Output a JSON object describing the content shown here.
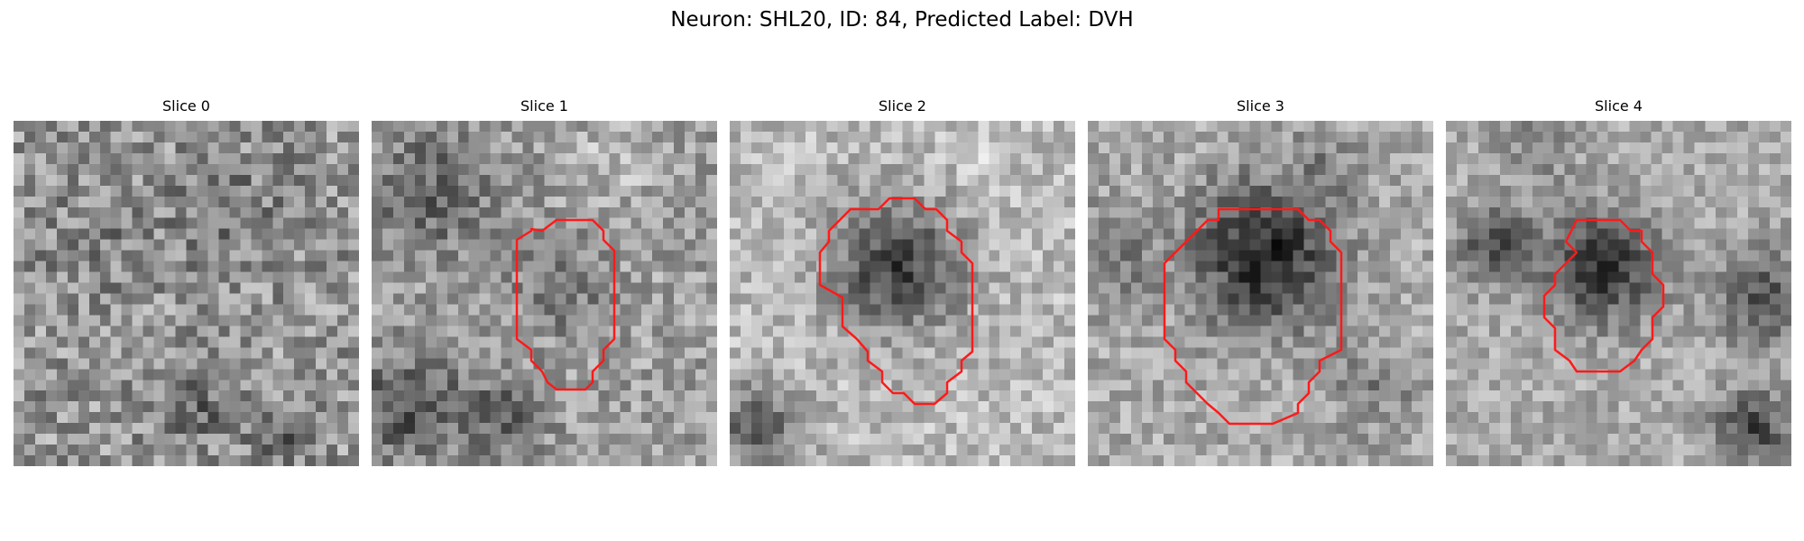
{
  "figure": {
    "title": "Neuron: SHL20, ID: 84, Predicted Label: DVH"
  },
  "panels": [
    {
      "label": "Slice 0",
      "has_contour": false
    },
    {
      "label": "Slice 1",
      "has_contour": true
    },
    {
      "label": "Slice 2",
      "has_contour": true
    },
    {
      "label": "Slice 3",
      "has_contour": true
    },
    {
      "label": "Slice 4",
      "has_contour": true
    }
  ],
  "colors": {
    "contour": "#ff1a1a",
    "background": "#ffffff"
  },
  "image": {
    "colormap": "grayscale",
    "grid": "32x32 pixel slices"
  }
}
